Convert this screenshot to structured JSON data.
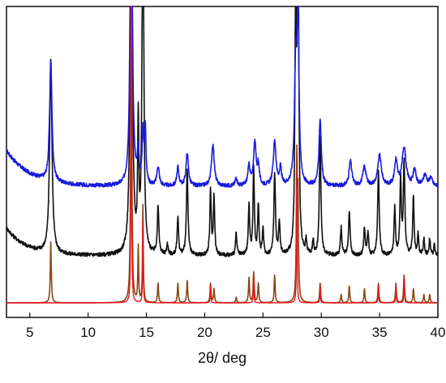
{
  "chart_data": {
    "type": "line",
    "title": "",
    "xlabel": "2θ/ deg",
    "ylabel": "",
    "xlim": [
      3,
      40
    ],
    "y_axis_visible": false,
    "x_ticks": [
      5,
      10,
      15,
      20,
      25,
      30,
      35,
      40
    ],
    "grid": false,
    "legend": "none",
    "series": [
      {
        "color": "#1a1adf",
        "baseline": 0.42,
        "start_level": 0.55,
        "decay": 6,
        "noise": 0.007,
        "peaks": [
          {
            "x": 6.8,
            "h": 0.44,
            "w": 0.12
          },
          {
            "x": 13.7,
            "h": 1.4,
            "w": 0.1
          },
          {
            "x": 14.3,
            "h": 0.12,
            "w": 0.08
          },
          {
            "x": 14.7,
            "h": 0.18,
            "w": 0.08
          },
          {
            "x": 14.9,
            "h": 0.2,
            "w": 0.08
          },
          {
            "x": 16.0,
            "h": 0.07,
            "w": 0.12
          },
          {
            "x": 17.7,
            "h": 0.07,
            "w": 0.1
          },
          {
            "x": 18.5,
            "h": 0.12,
            "w": 0.12
          },
          {
            "x": 20.7,
            "h": 0.15,
            "w": 0.14
          },
          {
            "x": 22.7,
            "h": 0.03,
            "w": 0.1
          },
          {
            "x": 23.8,
            "h": 0.07,
            "w": 0.12
          },
          {
            "x": 24.3,
            "h": 0.16,
            "w": 0.12
          },
          {
            "x": 24.6,
            "h": 0.07,
            "w": 0.1
          },
          {
            "x": 26.0,
            "h": 0.16,
            "w": 0.14
          },
          {
            "x": 26.5,
            "h": 0.06,
            "w": 0.1
          },
          {
            "x": 27.8,
            "h": 0.4,
            "w": 0.12
          },
          {
            "x": 28.0,
            "h": 0.6,
            "w": 0.1
          },
          {
            "x": 29.9,
            "h": 0.24,
            "w": 0.12
          },
          {
            "x": 32.5,
            "h": 0.09,
            "w": 0.14
          },
          {
            "x": 33.7,
            "h": 0.07,
            "w": 0.16
          },
          {
            "x": 35.0,
            "h": 0.11,
            "w": 0.18
          },
          {
            "x": 36.4,
            "h": 0.09,
            "w": 0.14
          },
          {
            "x": 37.1,
            "h": 0.14,
            "w": 0.2
          },
          {
            "x": 38.0,
            "h": 0.06,
            "w": 0.14
          },
          {
            "x": 38.9,
            "h": 0.04,
            "w": 0.18
          },
          {
            "x": 39.4,
            "h": 0.03,
            "w": 0.14
          }
        ]
      },
      {
        "color": "#111111",
        "baseline": 0.17,
        "start_level": 0.27,
        "decay": 5,
        "noise": 0.007,
        "peaks": [
          {
            "x": 6.8,
            "h": 0.7,
            "w": 0.12
          },
          {
            "x": 13.7,
            "h": 1.6,
            "w": 0.1
          },
          {
            "x": 14.3,
            "h": 0.45,
            "w": 0.06
          },
          {
            "x": 14.7,
            "h": 1.5,
            "w": 0.08
          },
          {
            "x": 16.0,
            "h": 0.17,
            "w": 0.08
          },
          {
            "x": 16.8,
            "h": 0.04,
            "w": 0.07
          },
          {
            "x": 17.7,
            "h": 0.14,
            "w": 0.07
          },
          {
            "x": 18.5,
            "h": 0.31,
            "w": 0.08
          },
          {
            "x": 20.5,
            "h": 0.23,
            "w": 0.07
          },
          {
            "x": 20.8,
            "h": 0.21,
            "w": 0.07
          },
          {
            "x": 22.7,
            "h": 0.08,
            "w": 0.07
          },
          {
            "x": 23.8,
            "h": 0.18,
            "w": 0.07
          },
          {
            "x": 24.2,
            "h": 0.31,
            "w": 0.07
          },
          {
            "x": 24.6,
            "h": 0.18,
            "w": 0.07
          },
          {
            "x": 25.0,
            "h": 0.1,
            "w": 0.06
          },
          {
            "x": 26.0,
            "h": 0.29,
            "w": 0.08
          },
          {
            "x": 26.4,
            "h": 0.12,
            "w": 0.07
          },
          {
            "x": 27.8,
            "h": 0.9,
            "w": 0.07
          },
          {
            "x": 28.0,
            "h": 1.4,
            "w": 0.07
          },
          {
            "x": 28.7,
            "h": 0.05,
            "w": 0.06
          },
          {
            "x": 29.3,
            "h": 0.05,
            "w": 0.06
          },
          {
            "x": 29.9,
            "h": 0.43,
            "w": 0.08
          },
          {
            "x": 31.7,
            "h": 0.1,
            "w": 0.07
          },
          {
            "x": 32.4,
            "h": 0.16,
            "w": 0.08
          },
          {
            "x": 33.7,
            "h": 0.1,
            "w": 0.07
          },
          {
            "x": 34.0,
            "h": 0.08,
            "w": 0.07
          },
          {
            "x": 34.9,
            "h": 0.3,
            "w": 0.08
          },
          {
            "x": 36.3,
            "h": 0.17,
            "w": 0.07
          },
          {
            "x": 36.8,
            "h": 0.27,
            "w": 0.07
          },
          {
            "x": 37.1,
            "h": 0.33,
            "w": 0.08
          },
          {
            "x": 37.9,
            "h": 0.21,
            "w": 0.07
          },
          {
            "x": 38.3,
            "h": 0.08,
            "w": 0.06
          },
          {
            "x": 38.8,
            "h": 0.06,
            "w": 0.07
          },
          {
            "x": 39.3,
            "h": 0.06,
            "w": 0.07
          },
          {
            "x": 39.7,
            "h": 0.04,
            "w": 0.06
          }
        ]
      },
      {
        "color": "#8b4513",
        "baseline": 0.0,
        "start_level": 0.0,
        "decay": 5,
        "noise": 0.0,
        "peaks": [
          {
            "x": 6.8,
            "h": 0.22,
            "w": 0.05
          },
          {
            "x": 13.7,
            "h": 1.3,
            "w": 0.05
          },
          {
            "x": 14.3,
            "h": 0.2,
            "w": 0.04
          },
          {
            "x": 14.7,
            "h": 0.35,
            "w": 0.04
          },
          {
            "x": 16.0,
            "h": 0.07,
            "w": 0.05
          },
          {
            "x": 17.7,
            "h": 0.07,
            "w": 0.05
          },
          {
            "x": 18.5,
            "h": 0.08,
            "w": 0.05
          },
          {
            "x": 20.5,
            "h": 0.07,
            "w": 0.05
          },
          {
            "x": 20.8,
            "h": 0.05,
            "w": 0.05
          },
          {
            "x": 22.7,
            "h": 0.02,
            "w": 0.05
          },
          {
            "x": 23.8,
            "h": 0.09,
            "w": 0.05
          },
          {
            "x": 24.2,
            "h": 0.11,
            "w": 0.05
          },
          {
            "x": 24.6,
            "h": 0.07,
            "w": 0.05
          },
          {
            "x": 26.0,
            "h": 0.1,
            "w": 0.05
          },
          {
            "x": 27.9,
            "h": 0.5,
            "w": 0.05
          },
          {
            "x": 28.0,
            "h": 0.35,
            "w": 0.05
          },
          {
            "x": 29.9,
            "h": 0.07,
            "w": 0.05
          },
          {
            "x": 31.7,
            "h": 0.03,
            "w": 0.05
          },
          {
            "x": 32.4,
            "h": 0.06,
            "w": 0.05
          },
          {
            "x": 33.7,
            "h": 0.05,
            "w": 0.05
          },
          {
            "x": 34.9,
            "h": 0.07,
            "w": 0.05
          },
          {
            "x": 36.4,
            "h": 0.07,
            "w": 0.05
          },
          {
            "x": 37.1,
            "h": 0.1,
            "w": 0.05
          },
          {
            "x": 37.9,
            "h": 0.05,
            "w": 0.05
          },
          {
            "x": 38.8,
            "h": 0.03,
            "w": 0.05
          },
          {
            "x": 39.3,
            "h": 0.03,
            "w": 0.05
          }
        ]
      },
      {
        "color": "#e8141c",
        "baseline": 0.0,
        "start_level": 0.0,
        "decay": 5,
        "noise": 0.0,
        "peaks": [
          {
            "x": 13.7,
            "h": 1.25,
            "w": 0.03
          },
          {
            "x": 14.7,
            "h": 0.3,
            "w": 0.03
          },
          {
            "x": 20.5,
            "h": 0.06,
            "w": 0.03
          },
          {
            "x": 24.2,
            "h": 0.1,
            "w": 0.03
          },
          {
            "x": 27.9,
            "h": 0.48,
            "w": 0.03
          },
          {
            "x": 29.9,
            "h": 0.06,
            "w": 0.03
          },
          {
            "x": 34.9,
            "h": 0.06,
            "w": 0.03
          },
          {
            "x": 36.4,
            "h": 0.06,
            "w": 0.03
          },
          {
            "x": 37.1,
            "h": 0.09,
            "w": 0.03
          }
        ]
      }
    ]
  }
}
